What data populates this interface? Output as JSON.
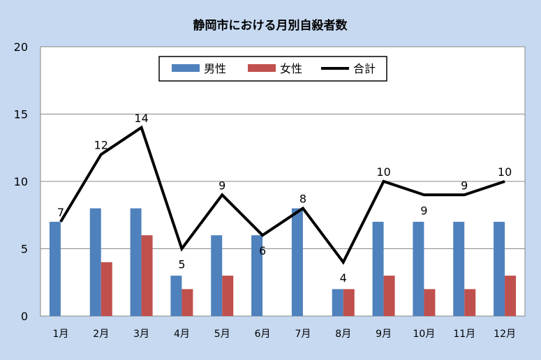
{
  "chart_data": {
    "type": "bar",
    "title": "静岡市における月別自殺者数",
    "xlabel": "",
    "ylabel": "",
    "ylim": [
      0,
      20
    ],
    "yticks": [
      0,
      5,
      10,
      15,
      20
    ],
    "grid": true,
    "legend_position": "top-center",
    "categories": [
      "1月",
      "2月",
      "3月",
      "4月",
      "5月",
      "6月",
      "7月",
      "8月",
      "9月",
      "10月",
      "11月",
      "12月"
    ],
    "series": [
      {
        "name": "男性",
        "type": "bar",
        "color": "#4f81bd",
        "values": [
          7,
          8,
          8,
          3,
          6,
          6,
          8,
          2,
          7,
          7,
          7,
          7
        ]
      },
      {
        "name": "女性",
        "type": "bar",
        "color": "#c0504d",
        "values": [
          0,
          4,
          6,
          2,
          3,
          0,
          0,
          2,
          3,
          2,
          2,
          3
        ]
      },
      {
        "name": "合計",
        "type": "line",
        "color": "#000000",
        "values": [
          7,
          12,
          14,
          5,
          9,
          6,
          8,
          4,
          10,
          9,
          9,
          10
        ]
      }
    ]
  }
}
